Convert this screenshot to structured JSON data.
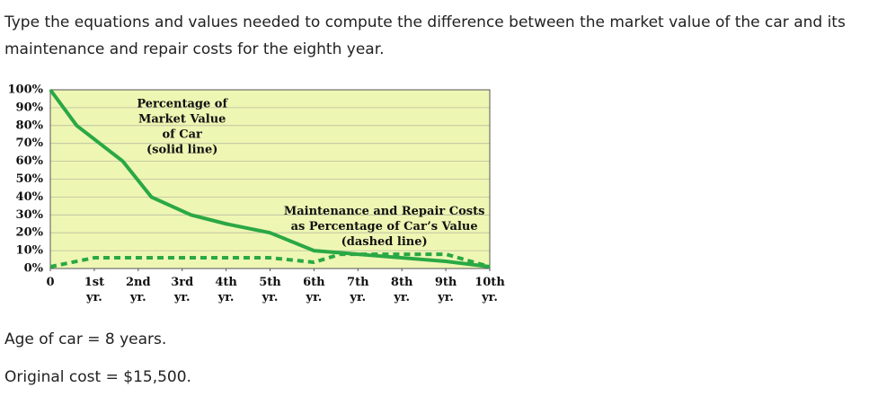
{
  "question": "Type the equations and values needed to compute the difference between the market value of the car and its maintenance and repair costs for the eighth year.",
  "chart_data": {
    "type": "line",
    "xlim": [
      0,
      10
    ],
    "xticks": [
      0,
      {
        "value": 1,
        "label": "1st yr."
      },
      {
        "value": 2,
        "label": "2nd yr."
      },
      {
        "value": 3,
        "label": "3rd yr."
      },
      {
        "value": 4,
        "label": "4th yr."
      },
      {
        "value": 5,
        "label": "5th yr."
      },
      {
        "value": 6,
        "label": "6th yr."
      },
      {
        "value": 7,
        "label": "7th yr."
      },
      {
        "value": 8,
        "label": "8th yr."
      },
      {
        "value": 9,
        "label": "9th yr."
      },
      {
        "value": 10,
        "label": "10th yr."
      }
    ],
    "ylim": [
      0,
      100
    ],
    "yticks": [
      {
        "value": 0,
        "label": "0%"
      },
      {
        "value": 10,
        "label": "10%"
      },
      {
        "value": 20,
        "label": "20%"
      },
      {
        "value": 30,
        "label": "30%"
      },
      {
        "value": 40,
        "label": "40%"
      },
      {
        "value": 50,
        "label": "50%"
      },
      {
        "value": 60,
        "label": "60%"
      },
      {
        "value": 70,
        "label": "70%"
      },
      {
        "value": 80,
        "label": "80%"
      },
      {
        "value": 90,
        "label": "90%"
      },
      {
        "value": 100,
        "label": "100%"
      }
    ],
    "grid": true,
    "series": [
      {
        "name": "Percentage of Market Value of Car",
        "color": "#2aa845",
        "dash": false,
        "x": [
          0,
          0.6,
          1.65,
          2.3,
          3.2,
          4,
          5,
          6,
          7,
          8,
          9,
          10
        ],
        "values": [
          100,
          80,
          60,
          40,
          30,
          25,
          20,
          10,
          8,
          6,
          4,
          1
        ]
      },
      {
        "name": "Maintenance and Repair Costs as Percentage of Car's Value",
        "color": "#2aa845",
        "dash": true,
        "x": [
          0,
          1,
          5,
          6,
          6.6,
          9,
          10
        ],
        "values": [
          1,
          6,
          6,
          3.5,
          8,
          8,
          1
        ]
      }
    ],
    "annotations": [
      {
        "lines": [
          "Percentage of",
          "Market Value",
          "of Car",
          "(solid line)"
        ],
        "x": 3,
        "y": 92
      },
      {
        "lines": [
          "Maintenance and Repair Costs",
          "as Percentage of Car’s Value",
          "(dashed line)"
        ],
        "x": 7.6,
        "y": 32
      }
    ]
  },
  "facts": [
    "Age of car = 8 years.",
    "Original cost = $15,500."
  ]
}
